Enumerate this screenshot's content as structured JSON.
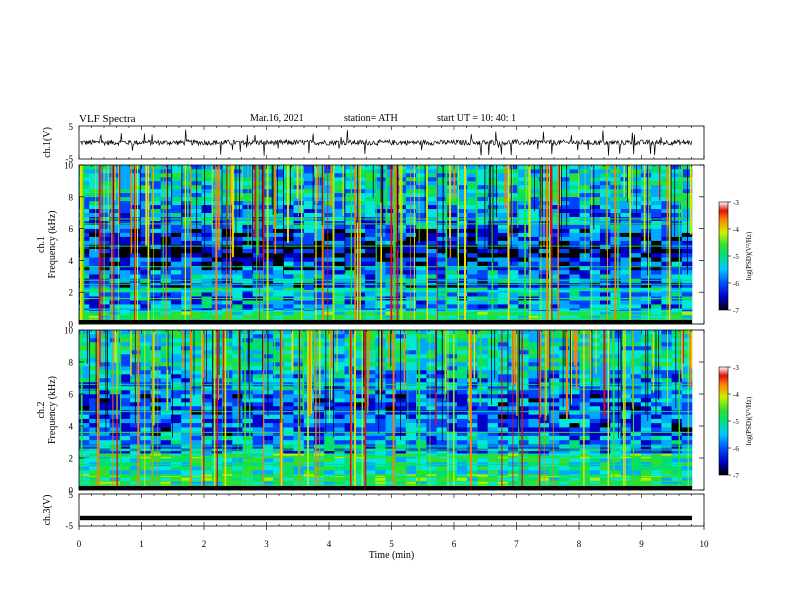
{
  "header": {
    "title": "VLF  Spectra",
    "date": "Mar.16, 2021",
    "station": "station= ATH",
    "start": "start  UT  =    10: 40: 1"
  },
  "chart_data": [
    {
      "type": "line",
      "panel": "ch1-waveform",
      "ylabel": "ch.1(V)",
      "ylim": [
        -5,
        5
      ],
      "yticks": [
        "5",
        "-5"
      ],
      "xlim": [
        0,
        10
      ],
      "description_values": {
        "baseline_level_V": 0,
        "typical_spike_amplitude_V": 3
      }
    },
    {
      "type": "heatmap",
      "panel": "ch1-spectrogram",
      "ylabel": "ch.1\nFrequency  (kHz)",
      "ylim": [
        0,
        10
      ],
      "yticks": [
        "0",
        "2",
        "4",
        "6",
        "8",
        "10"
      ],
      "xlim": [
        0,
        9.8
      ],
      "colorbar": {
        "label": "log(PSD)(V²/Hz)",
        "range": [
          -7,
          -3
        ],
        "ticks": [
          "-3",
          "-4",
          "-5",
          "-6",
          "-7"
        ]
      }
    },
    {
      "type": "heatmap",
      "panel": "ch2-spectrogram",
      "ylabel": "ch.2\nFrequency  (kHz)",
      "ylim": [
        0,
        10
      ],
      "yticks": [
        "0",
        "2",
        "4",
        "6",
        "8",
        "10"
      ],
      "xlim": [
        0,
        9.8
      ],
      "colorbar": {
        "label": "log(PSD)(V²/Hz)",
        "range": [
          -7,
          -3
        ],
        "ticks": [
          "-3",
          "-4",
          "-5",
          "-6",
          "-7"
        ]
      }
    },
    {
      "type": "line",
      "panel": "ch3-waveform",
      "ylabel": "ch.3(V)",
      "ylim": [
        -5,
        5
      ],
      "yticks": [
        "5",
        "-5"
      ],
      "xlim": [
        0,
        10
      ],
      "description_values": {
        "baseline_level_V": -2.5
      }
    }
  ],
  "xaxis": {
    "label": "Time  (min)",
    "ticks": [
      "0",
      "1",
      "2",
      "3",
      "4",
      "5",
      "6",
      "7",
      "8",
      "9",
      "10"
    ],
    "range": [
      0,
      10
    ]
  },
  "colors": {
    "ramp": [
      "#000000",
      "#0000c8",
      "#0040ff",
      "#00a8ff",
      "#00e8d8",
      "#00e070",
      "#30e030",
      "#b0f000",
      "#f0e000",
      "#ff8000",
      "#e01010",
      "#ffffff"
    ]
  }
}
